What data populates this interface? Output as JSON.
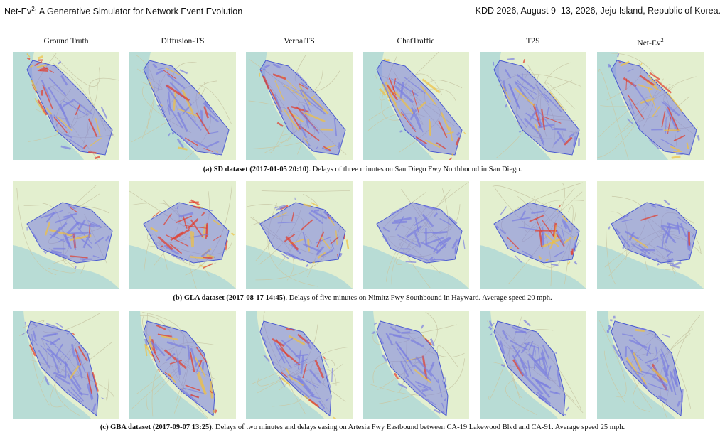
{
  "header": {
    "title_base": "Net-Ev",
    "title_sup": "2",
    "title_rest": ": A Generative Simulator for Network Event Evolution",
    "venue": "KDD 2026, August 9–13, 2026, Jeju Island, Republic of Korea."
  },
  "columns": [
    {
      "label": "Ground Truth",
      "sup": ""
    },
    {
      "label": "Diffusion-TS",
      "sup": ""
    },
    {
      "label": "VerbalTS",
      "sup": ""
    },
    {
      "label": "ChatTraffic",
      "sup": ""
    },
    {
      "label": "T2S",
      "sup": ""
    },
    {
      "label": "Net-Ev",
      "sup": "2"
    }
  ],
  "rows": [
    {
      "id": "sd",
      "caption_bold": "(a) SD dataset (2017-01-05 20:10)",
      "caption_rest": ". Delays of three minutes on San Diego Fwy Northbound in San Diego."
    },
    {
      "id": "gla",
      "caption_bold": "(b) GLA dataset (2017-08-17 14:45)",
      "caption_rest": ". Delays of five minutes on Nimitz Fwy Southbound in Hayward. Average speed 20 mph."
    },
    {
      "id": "gba",
      "caption_bold": "(c) GBA dataset (2017-09-07 13:25)",
      "caption_rest": ". Delays of two minutes and delays easing on Artesia Fwy Eastbound between CA-19 Lakewood Blvd and CA-91. Average speed 25 mph."
    }
  ],
  "colors": {
    "land": "#e3efcf",
    "water": "#b8dcd5",
    "congestion_low": "#7b7fe0",
    "congestion_mid": "#f0c040",
    "congestion_high": "#e23a2a"
  }
}
